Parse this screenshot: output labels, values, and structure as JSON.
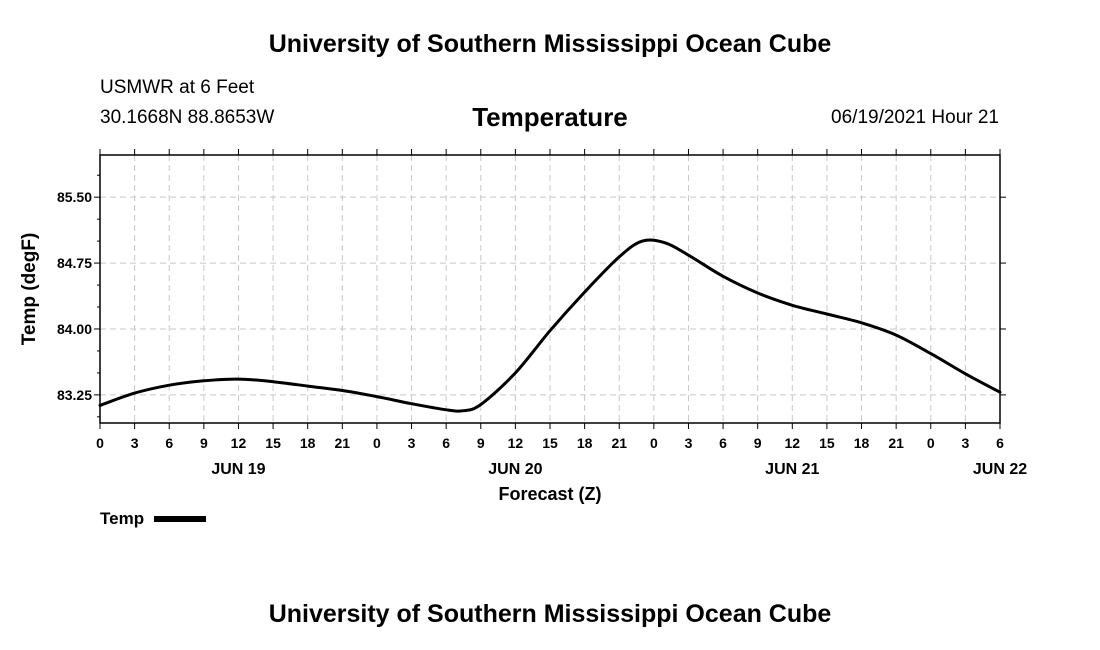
{
  "header": {
    "org_title": "University of Southern Mississippi Ocean Cube",
    "station": "USMWR at 6 Feet",
    "coords": "30.1668N  88.8653W",
    "chart_title": "Temperature",
    "datetime": "06/19/2021 Hour 21"
  },
  "footer": {
    "org_title": "University of Southern Mississippi Ocean Cube"
  },
  "legend": {
    "label": "Temp",
    "color": "#000000"
  },
  "chart_data": {
    "type": "line",
    "title": "Temperature",
    "xlabel": "Forecast (Z)",
    "ylabel": "Temp (degF)",
    "xlim": [
      0,
      78
    ],
    "ylim": [
      82.93,
      85.98
    ],
    "yticks": [
      "83.25",
      "84.00",
      "84.75",
      "85.50"
    ],
    "ytick_values": [
      83.25,
      84.0,
      84.75,
      85.5
    ],
    "xticks": [
      "0",
      "3",
      "6",
      "9",
      "12",
      "15",
      "18",
      "21",
      "0",
      "3",
      "6",
      "9",
      "12",
      "15",
      "18",
      "21",
      "0",
      "3",
      "6",
      "9",
      "12",
      "15",
      "18",
      "21",
      "0",
      "3",
      "6"
    ],
    "date_labels": [
      {
        "label": "JUN 19",
        "hour": 12
      },
      {
        "label": "JUN 20",
        "hour": 36
      },
      {
        "label": "JUN 21",
        "hour": 60
      },
      {
        "label": "JUN 22",
        "hour": 78
      }
    ],
    "grid": true,
    "series": [
      {
        "name": "Temp",
        "x": [
          0,
          3,
          6,
          9,
          12,
          15,
          18,
          21,
          24,
          27,
          30,
          31.5,
          33,
          36,
          39,
          42,
          45,
          47,
          49,
          51,
          54,
          57,
          60,
          63,
          66,
          69,
          72,
          75,
          78
        ],
        "values": [
          83.13,
          83.27,
          83.36,
          83.41,
          83.43,
          83.4,
          83.35,
          83.3,
          83.23,
          83.15,
          83.08,
          83.07,
          83.14,
          83.5,
          83.98,
          84.42,
          84.82,
          85.0,
          84.98,
          84.84,
          84.6,
          84.41,
          84.27,
          84.17,
          84.07,
          83.93,
          83.72,
          83.49,
          83.28
        ]
      }
    ]
  }
}
